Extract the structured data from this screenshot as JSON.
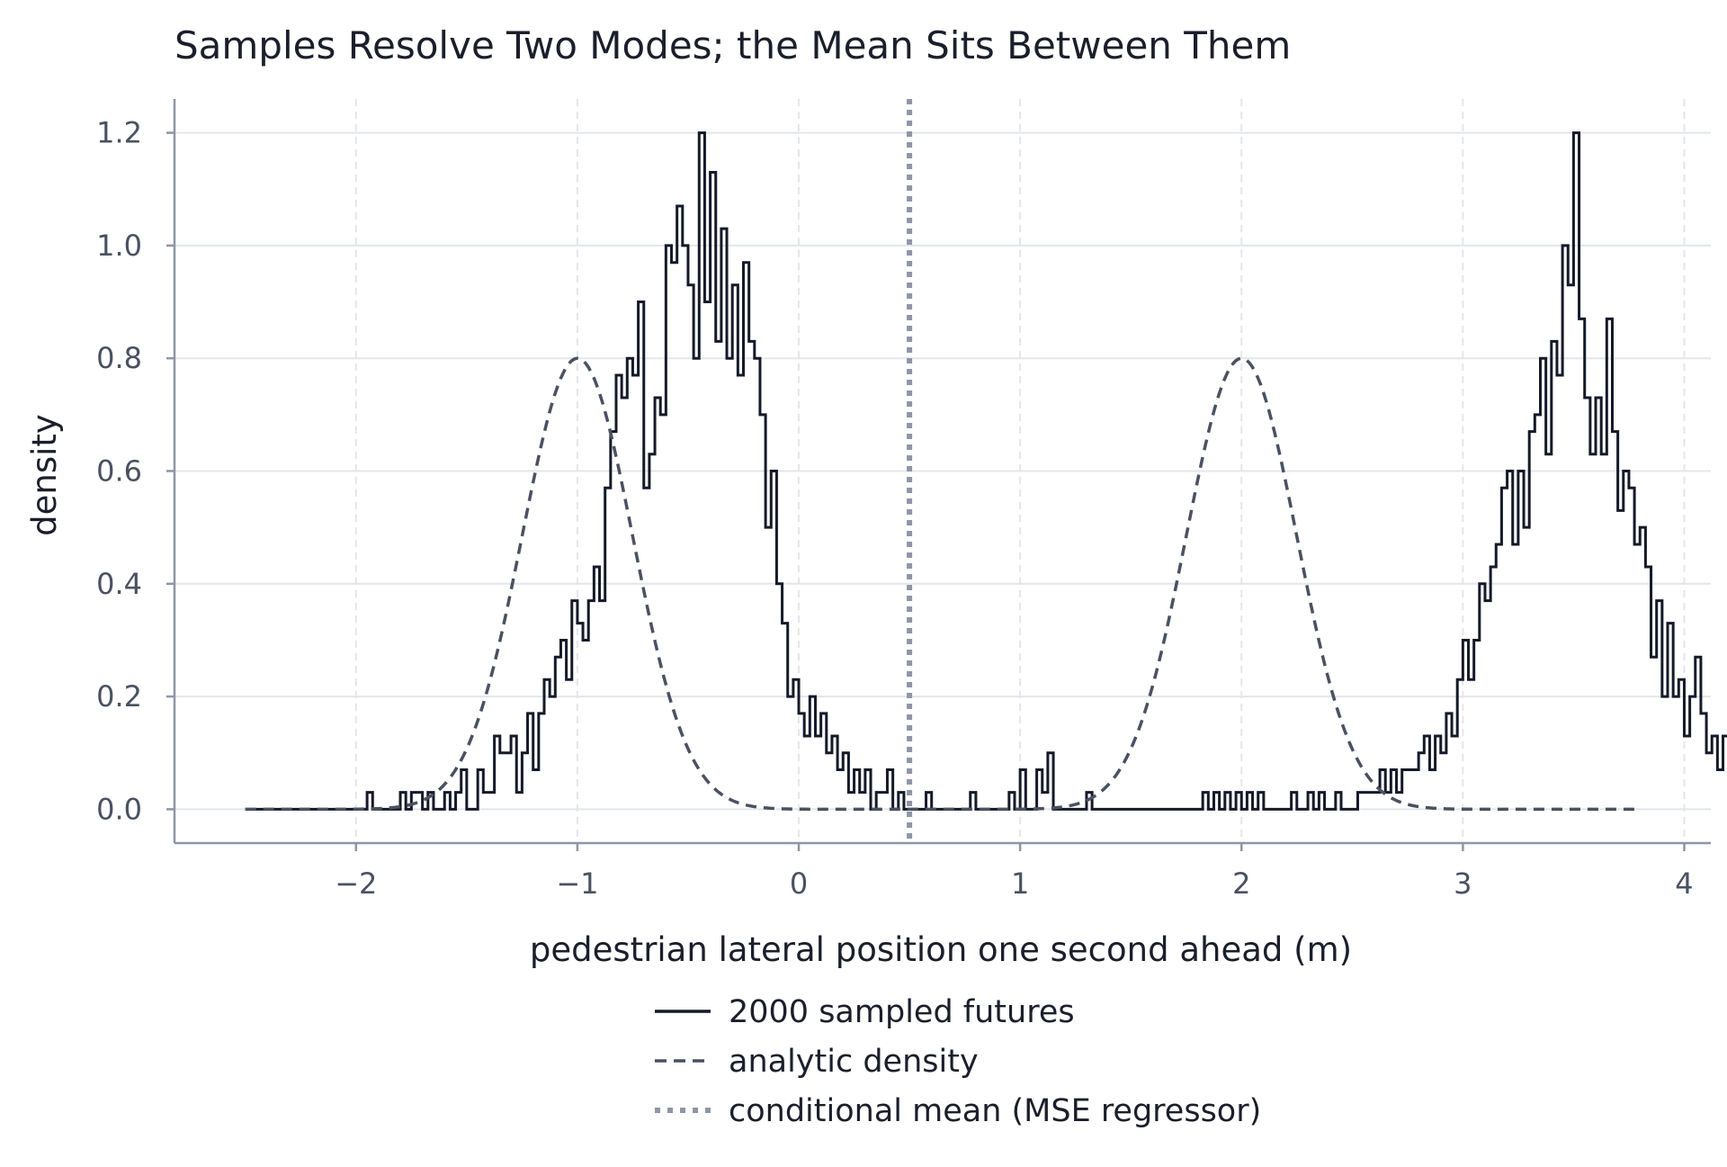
{
  "chart_data": {
    "type": "line",
    "title": "Samples Resolve Two Modes; the Mean Sits Between Them",
    "xlabel": "pedestrian lateral position one second ahead (m)",
    "ylabel": "density",
    "xlim": [
      -2.82,
      4.12
    ],
    "ylim": [
      -0.06,
      1.26
    ],
    "xticks": [
      -2,
      -1,
      0,
      1,
      2,
      3,
      4
    ],
    "yticks": [
      0.0,
      0.2,
      0.4,
      0.6,
      0.8,
      1.0,
      1.2
    ],
    "xtick_labels": [
      "−2",
      "−1",
      "0",
      "1",
      "2",
      "3",
      "4"
    ],
    "ytick_labels": [
      "0.0",
      "0.2",
      "0.4",
      "0.6",
      "0.8",
      "1.0",
      "1.2"
    ],
    "grid": true,
    "legend_placement": "below",
    "series": [
      {
        "name": "2000 sampled futures",
        "style": "solid",
        "color": "#151a29",
        "kind": "histogram-step",
        "bin_width": 0.025,
        "bin_start": -2.5,
        "bin_values": [
          0,
          0,
          0,
          0,
          0,
          0,
          0,
          0,
          0,
          0,
          0,
          0,
          0,
          0,
          0,
          0,
          0,
          0,
          0,
          0,
          0,
          0,
          0.03,
          0,
          0,
          0,
          0,
          0,
          0.03,
          0,
          0.03,
          0.03,
          0,
          0.03,
          0,
          0,
          0.03,
          0,
          0.03,
          0.07,
          0,
          0,
          0.07,
          0.03,
          0.03,
          0.13,
          0.1,
          0.1,
          0.13,
          0.03,
          0.1,
          0.17,
          0.07,
          0.17,
          0.23,
          0.2,
          0.27,
          0.3,
          0.23,
          0.37,
          0.33,
          0.3,
          0.37,
          0.43,
          0.37,
          0.57,
          0.67,
          0.77,
          0.73,
          0.8,
          0.77,
          0.9,
          0.57,
          0.63,
          0.73,
          0.7,
          1.0,
          0.97,
          1.07,
          1.0,
          0.93,
          0.8,
          1.2,
          0.9,
          1.13,
          0.83,
          1.03,
          0.8,
          0.93,
          0.77,
          0.97,
          0.83,
          0.8,
          0.7,
          0.5,
          0.6,
          0.4,
          0.33,
          0.2,
          0.23,
          0.17,
          0.13,
          0.2,
          0.13,
          0.17,
          0.1,
          0.13,
          0.07,
          0.1,
          0.03,
          0.07,
          0.03,
          0.07,
          0,
          0.03,
          0.03,
          0.07,
          0,
          0.03,
          0,
          0,
          0,
          0,
          0.03,
          0,
          0,
          0,
          0,
          0,
          0,
          0,
          0.03,
          0,
          0,
          0,
          0,
          0,
          0,
          0.03,
          0,
          0.07,
          0,
          0,
          0.07,
          0.03,
          0.1,
          0,
          0,
          0,
          0,
          0,
          0,
          0.03,
          0,
          0,
          0,
          0,
          0,
          0,
          0,
          0,
          0,
          0,
          0,
          0,
          0,
          0,
          0,
          0,
          0,
          0,
          0,
          0,
          0.03,
          0,
          0.03,
          0,
          0.03,
          0,
          0.03,
          0,
          0.03,
          0,
          0.03,
          0,
          0,
          0,
          0,
          0,
          0.03,
          0,
          0,
          0.03,
          0,
          0.03,
          0,
          0,
          0.03,
          0,
          0,
          0,
          0.03,
          0.03,
          0.03,
          0.03,
          0.07,
          0.03,
          0.07,
          0.03,
          0.07,
          0.07,
          0.07,
          0.1,
          0.13,
          0.07,
          0.13,
          0.1,
          0.17,
          0.13,
          0.23,
          0.3,
          0.23,
          0.3,
          0.4,
          0.37,
          0.43,
          0.47,
          0.57,
          0.6,
          0.47,
          0.6,
          0.5,
          0.67,
          0.7,
          0.8,
          0.63,
          0.83,
          0.77,
          1.0,
          0.93,
          1.2,
          0.87,
          0.73,
          0.63,
          0.73,
          0.63,
          0.87,
          0.67,
          0.53,
          0.6,
          0.57,
          0.47,
          0.5,
          0.43,
          0.27,
          0.37,
          0.2,
          0.33,
          0.2,
          0.23,
          0.13,
          0.2,
          0.27,
          0.17,
          0.1,
          0.13,
          0.07,
          0.13,
          0.03,
          0.07,
          0.03,
          0.07,
          0.03,
          0.03,
          0,
          0,
          0,
          0,
          0,
          0.03,
          0,
          0.03,
          0,
          0,
          0.03,
          0,
          0,
          0,
          0,
          0,
          0,
          0,
          0,
          0,
          0,
          0,
          0,
          0,
          0,
          0,
          0,
          0,
          0,
          0,
          0,
          0,
          0,
          0,
          0,
          0,
          0,
          0,
          0,
          0,
          0,
          0,
          0,
          0,
          0,
          0,
          0,
          0,
          0,
          0,
          0,
          0,
          0
        ]
      },
      {
        "name": "analytic density",
        "style": "dashed",
        "color": "#4a5161",
        "kind": "function",
        "description_values": {
          "modes": [
            -1,
            2
          ],
          "peak_density": 0.8,
          "x_range": [
            -2.5,
            3.8
          ]
        }
      },
      {
        "name": "conditional mean (MSE regressor)",
        "style": "dotted",
        "color": "#8e96a6",
        "kind": "vline",
        "x": 0.5
      }
    ]
  },
  "legend": {
    "items": [
      {
        "label": "2000 sampled futures",
        "style": "solid",
        "color": "#151a29"
      },
      {
        "label": "analytic density",
        "style": "dashed",
        "color": "#4a5161"
      },
      {
        "label": "conditional mean (MSE regressor)",
        "style": "dotted",
        "color": "#8e96a6"
      }
    ]
  },
  "colors": {
    "axis": "#8e96a6",
    "grid": "#e3e6ea",
    "text": "#1b1f2b",
    "tick_text": "#4a5161"
  }
}
